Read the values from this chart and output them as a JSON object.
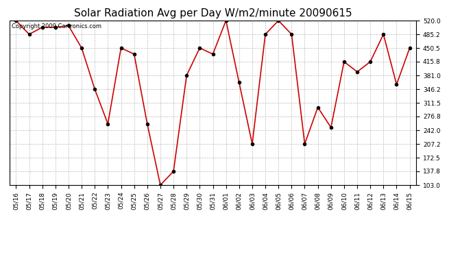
{
  "title": "Solar Radiation Avg per Day W/m2/minute 20090615",
  "copyright": "Copyright 2009 Cartronics.com",
  "dates": [
    "05/16",
    "05/17",
    "05/18",
    "05/19",
    "05/20",
    "05/21",
    "05/22",
    "05/23",
    "05/24",
    "05/25",
    "05/26",
    "05/27",
    "05/28",
    "05/29",
    "05/30",
    "05/31",
    "06/01",
    "06/02",
    "06/03",
    "06/04",
    "06/05",
    "06/06",
    "06/07",
    "06/08",
    "06/09",
    "06/10",
    "06/11",
    "06/12",
    "06/13",
    "06/14",
    "06/15"
  ],
  "values": [
    520.0,
    485.2,
    503.0,
    503.0,
    507.0,
    450.5,
    346.2,
    258.0,
    450.5,
    435.0,
    258.0,
    103.0,
    137.8,
    381.0,
    450.5,
    435.0,
    520.0,
    363.0,
    207.2,
    485.2,
    520.0,
    485.2,
    207.2,
    300.0,
    249.0,
    415.8,
    390.0,
    415.8,
    485.2,
    358.0,
    450.5
  ],
  "ylim_min": 103.0,
  "ylim_max": 520.0,
  "yticks": [
    103.0,
    137.8,
    172.5,
    207.2,
    242.0,
    276.8,
    311.5,
    346.2,
    381.0,
    415.8,
    450.5,
    485.2,
    520.0
  ],
  "line_color": "#cc0000",
  "marker_color": "#000000",
  "marker_size": 3,
  "bg_color": "#ffffff",
  "grid_color": "#bbbbbb",
  "title_fontsize": 11,
  "tick_fontsize": 6.5,
  "copyright_fontsize": 6
}
